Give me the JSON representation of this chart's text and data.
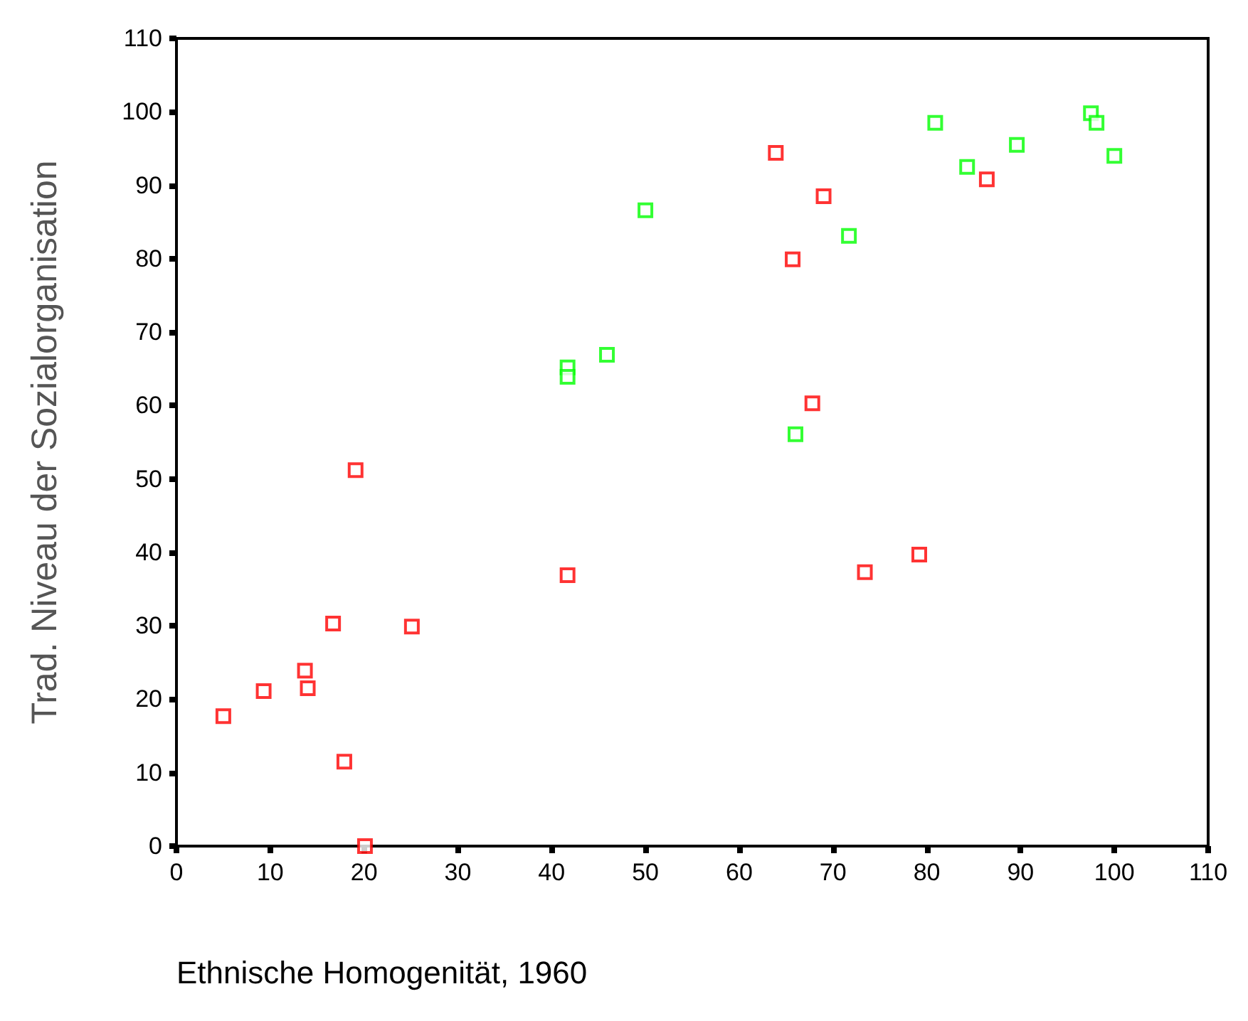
{
  "chart_data": {
    "type": "scatter",
    "xlabel": "Ethnische Homogenität, 1960",
    "ylabel": "Trad. Niveau der Sozialorganisation",
    "xlim": [
      0,
      110
    ],
    "ylim": [
      0,
      110
    ],
    "xticks": [
      0,
      10,
      20,
      30,
      40,
      50,
      60,
      70,
      80,
      90,
      100,
      110
    ],
    "yticks": [
      0,
      10,
      20,
      30,
      40,
      50,
      60,
      70,
      80,
      90,
      100,
      110
    ],
    "grid": false,
    "legend": false,
    "marker": "square",
    "series": [
      {
        "color": "#ff0000",
        "x": [
          5.0,
          9.3,
          13.7,
          14.0,
          16.7,
          17.9,
          19.1,
          20.1,
          25.1,
          41.7,
          63.9,
          65.7,
          67.8,
          69.0,
          73.4,
          79.2,
          86.4
        ],
        "values": [
          17.7,
          21.1,
          23.9,
          21.5,
          30.3,
          11.5,
          51.2,
          0,
          29.9,
          36.9,
          94.4,
          79.9,
          60.3,
          88.5,
          37.3,
          39.7,
          90.8
        ]
      },
      {
        "color": "#00ff00",
        "x": [
          50.0,
          41.7,
          41.7,
          45.9,
          66.0,
          71.7,
          80.9,
          84.3,
          89.6,
          97.5,
          98.1,
          100
        ],
        "values": [
          86.6,
          65.2,
          63.9,
          66.9,
          56.1,
          83.1,
          98.5,
          92.5,
          95.5,
          99.8,
          98.5,
          94.0
        ]
      }
    ]
  }
}
